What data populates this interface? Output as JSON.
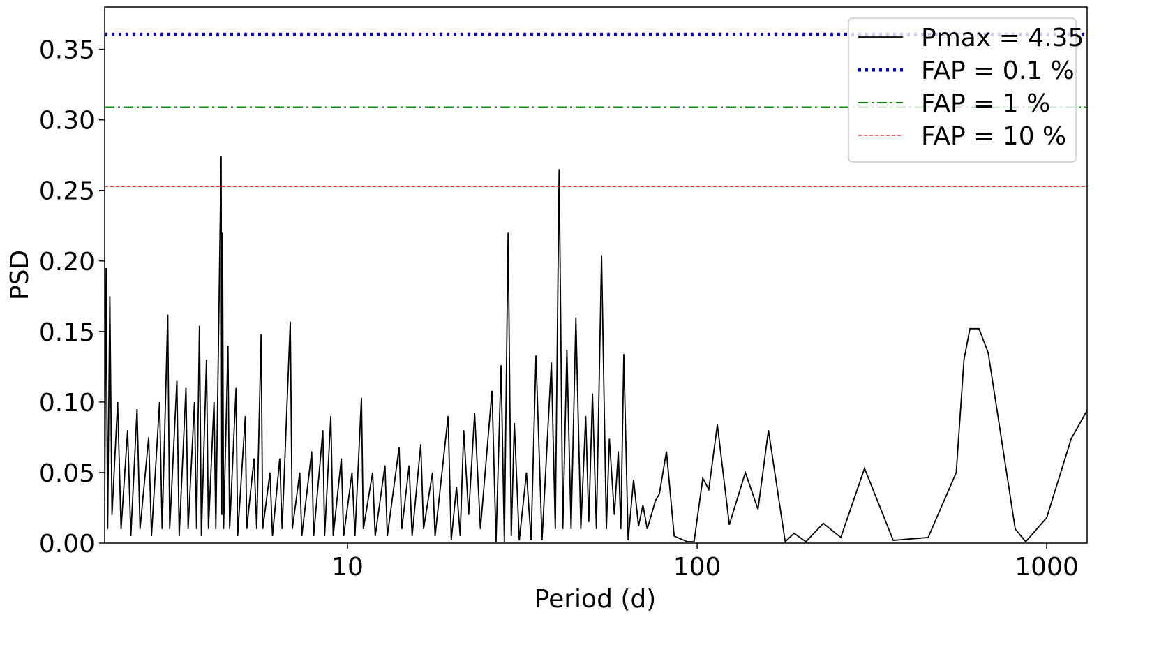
{
  "chart_data": {
    "type": "line",
    "xlabel": "Period (d)",
    "ylabel": "PSD",
    "xscale": "log",
    "xlim": [
      2.02,
      1305
    ],
    "ylim": [
      0,
      0.38
    ],
    "xticks": [
      10,
      100,
      1000
    ],
    "yticks": [
      {
        "value": 0,
        "label": "0.00"
      },
      {
        "value": 0.05,
        "label": "0.05"
      },
      {
        "value": 0.1,
        "label": "0.10"
      },
      {
        "value": 0.15,
        "label": "0.15"
      },
      {
        "value": 0.2,
        "label": "0.20"
      },
      {
        "value": 0.25,
        "label": "0.25"
      },
      {
        "value": 0.3,
        "label": "0.30"
      },
      {
        "value": 0.35,
        "label": "0.35"
      }
    ],
    "legend": "upper right",
    "grid": false,
    "series": [
      {
        "name": "Pmax = 4.35",
        "color": "#000000",
        "x": [
          2.02,
          2.04,
          2.06,
          2.09,
          2.12,
          2.2,
          2.25,
          2.35,
          2.4,
          2.5,
          2.55,
          2.7,
          2.75,
          2.9,
          2.95,
          3.06,
          3.1,
          3.25,
          3.3,
          3.45,
          3.5,
          3.65,
          3.7,
          3.77,
          3.82,
          3.95,
          4.0,
          4.15,
          4.2,
          4.35,
          4.37,
          4.39,
          4.42,
          4.55,
          4.6,
          4.8,
          4.85,
          5.1,
          5.15,
          5.4,
          5.5,
          5.66,
          5.72,
          6.0,
          6.1,
          6.4,
          6.5,
          6.86,
          6.95,
          7.3,
          7.4,
          7.9,
          8.0,
          8.5,
          8.6,
          8.96,
          9.1,
          9.6,
          9.75,
          10.3,
          10.5,
          10.96,
          11.1,
          11.8,
          12.0,
          12.8,
          13.0,
          14.05,
          14.3,
          15.0,
          15.3,
          16.2,
          16.5,
          17.5,
          17.8,
          19.4,
          19.8,
          20.5,
          21.0,
          21.5,
          22.2,
          23.1,
          24.0,
          25.9,
          26.6,
          27.5,
          28.1,
          28.8,
          29.4,
          30.0,
          31.0,
          32.5,
          33.5,
          34.6,
          36.0,
          38.3,
          39.3,
          40.3,
          41.3,
          42.4,
          43.6,
          45.0,
          46.5,
          48.0,
          49.0,
          50.2,
          51.5,
          53.3,
          55.0,
          56.1,
          58.0,
          59.5,
          60.5,
          61.7,
          63.5,
          65.8,
          68.0,
          70.0,
          72.0,
          76.0,
          78.0,
          81.7,
          86.0,
          93.7,
          98,
          103.8,
          108,
          114.3,
          123.6,
          137.4,
          149.3,
          160.0,
          178.6,
          189.4,
          204.8,
          229.6,
          257.7,
          301.3,
          363.9,
          458,
          551,
          580,
          603,
          640,
          680,
          813,
          871,
          1000,
          1175,
          1305
        ],
        "values": [
          0.03,
          0.195,
          0.01,
          0.175,
          0.02,
          0.1,
          0.01,
          0.08,
          0.005,
          0.095,
          0.01,
          0.075,
          0.005,
          0.1,
          0.01,
          0.162,
          0.01,
          0.115,
          0.005,
          0.11,
          0.01,
          0.1,
          0.01,
          0.154,
          0.005,
          0.13,
          0.01,
          0.1,
          0.01,
          0.274,
          0.02,
          0.22,
          0.01,
          0.14,
          0.01,
          0.11,
          0.005,
          0.09,
          0.01,
          0.06,
          0.01,
          0.148,
          0.01,
          0.05,
          0.005,
          0.06,
          0.01,
          0.157,
          0.01,
          0.05,
          0.005,
          0.065,
          0.005,
          0.08,
          0.005,
          0.09,
          0.005,
          0.06,
          0.005,
          0.05,
          0.005,
          0.103,
          0.01,
          0.05,
          0.005,
          0.055,
          0.005,
          0.068,
          0.01,
          0.055,
          0.005,
          0.07,
          0.01,
          0.05,
          0.005,
          0.09,
          0.002,
          0.04,
          0.005,
          0.08,
          0.02,
          0.092,
          0.01,
          0.108,
          0.001,
          0.126,
          0.001,
          0.22,
          0.005,
          0.085,
          0.002,
          0.05,
          0.002,
          0.133,
          0.002,
          0.128,
          0.01,
          0.265,
          0.01,
          0.137,
          0.01,
          0.16,
          0.01,
          0.09,
          0.015,
          0.106,
          0.01,
          0.204,
          0.01,
          0.074,
          0.02,
          0.065,
          0.01,
          0.134,
          0.002,
          0.045,
          0.012,
          0.027,
          0.01,
          0.03,
          0.035,
          0.065,
          0.005,
          0.001,
          0.001,
          0.046,
          0.038,
          0.084,
          0.013,
          0.05,
          0.024,
          0.08,
          0.001,
          0.007,
          0.001,
          0.014,
          0.004,
          0.053,
          0.002,
          0.004,
          0.05,
          0.13,
          0.152,
          0.152,
          0.135,
          0.01,
          0.001,
          0.018,
          0.074,
          0.094
        ]
      },
      {
        "name": "FAP = 0.1 %",
        "color": "#0000dd",
        "linestyle": "dotted",
        "value": 0.3605
      },
      {
        "name": "FAP = 1 %",
        "color": "#118811",
        "linestyle": "dashdot",
        "value": 0.309
      },
      {
        "name": "FAP = 10 %",
        "color": "#ee1111",
        "linestyle": "dashed",
        "value": 0.2527
      }
    ]
  }
}
